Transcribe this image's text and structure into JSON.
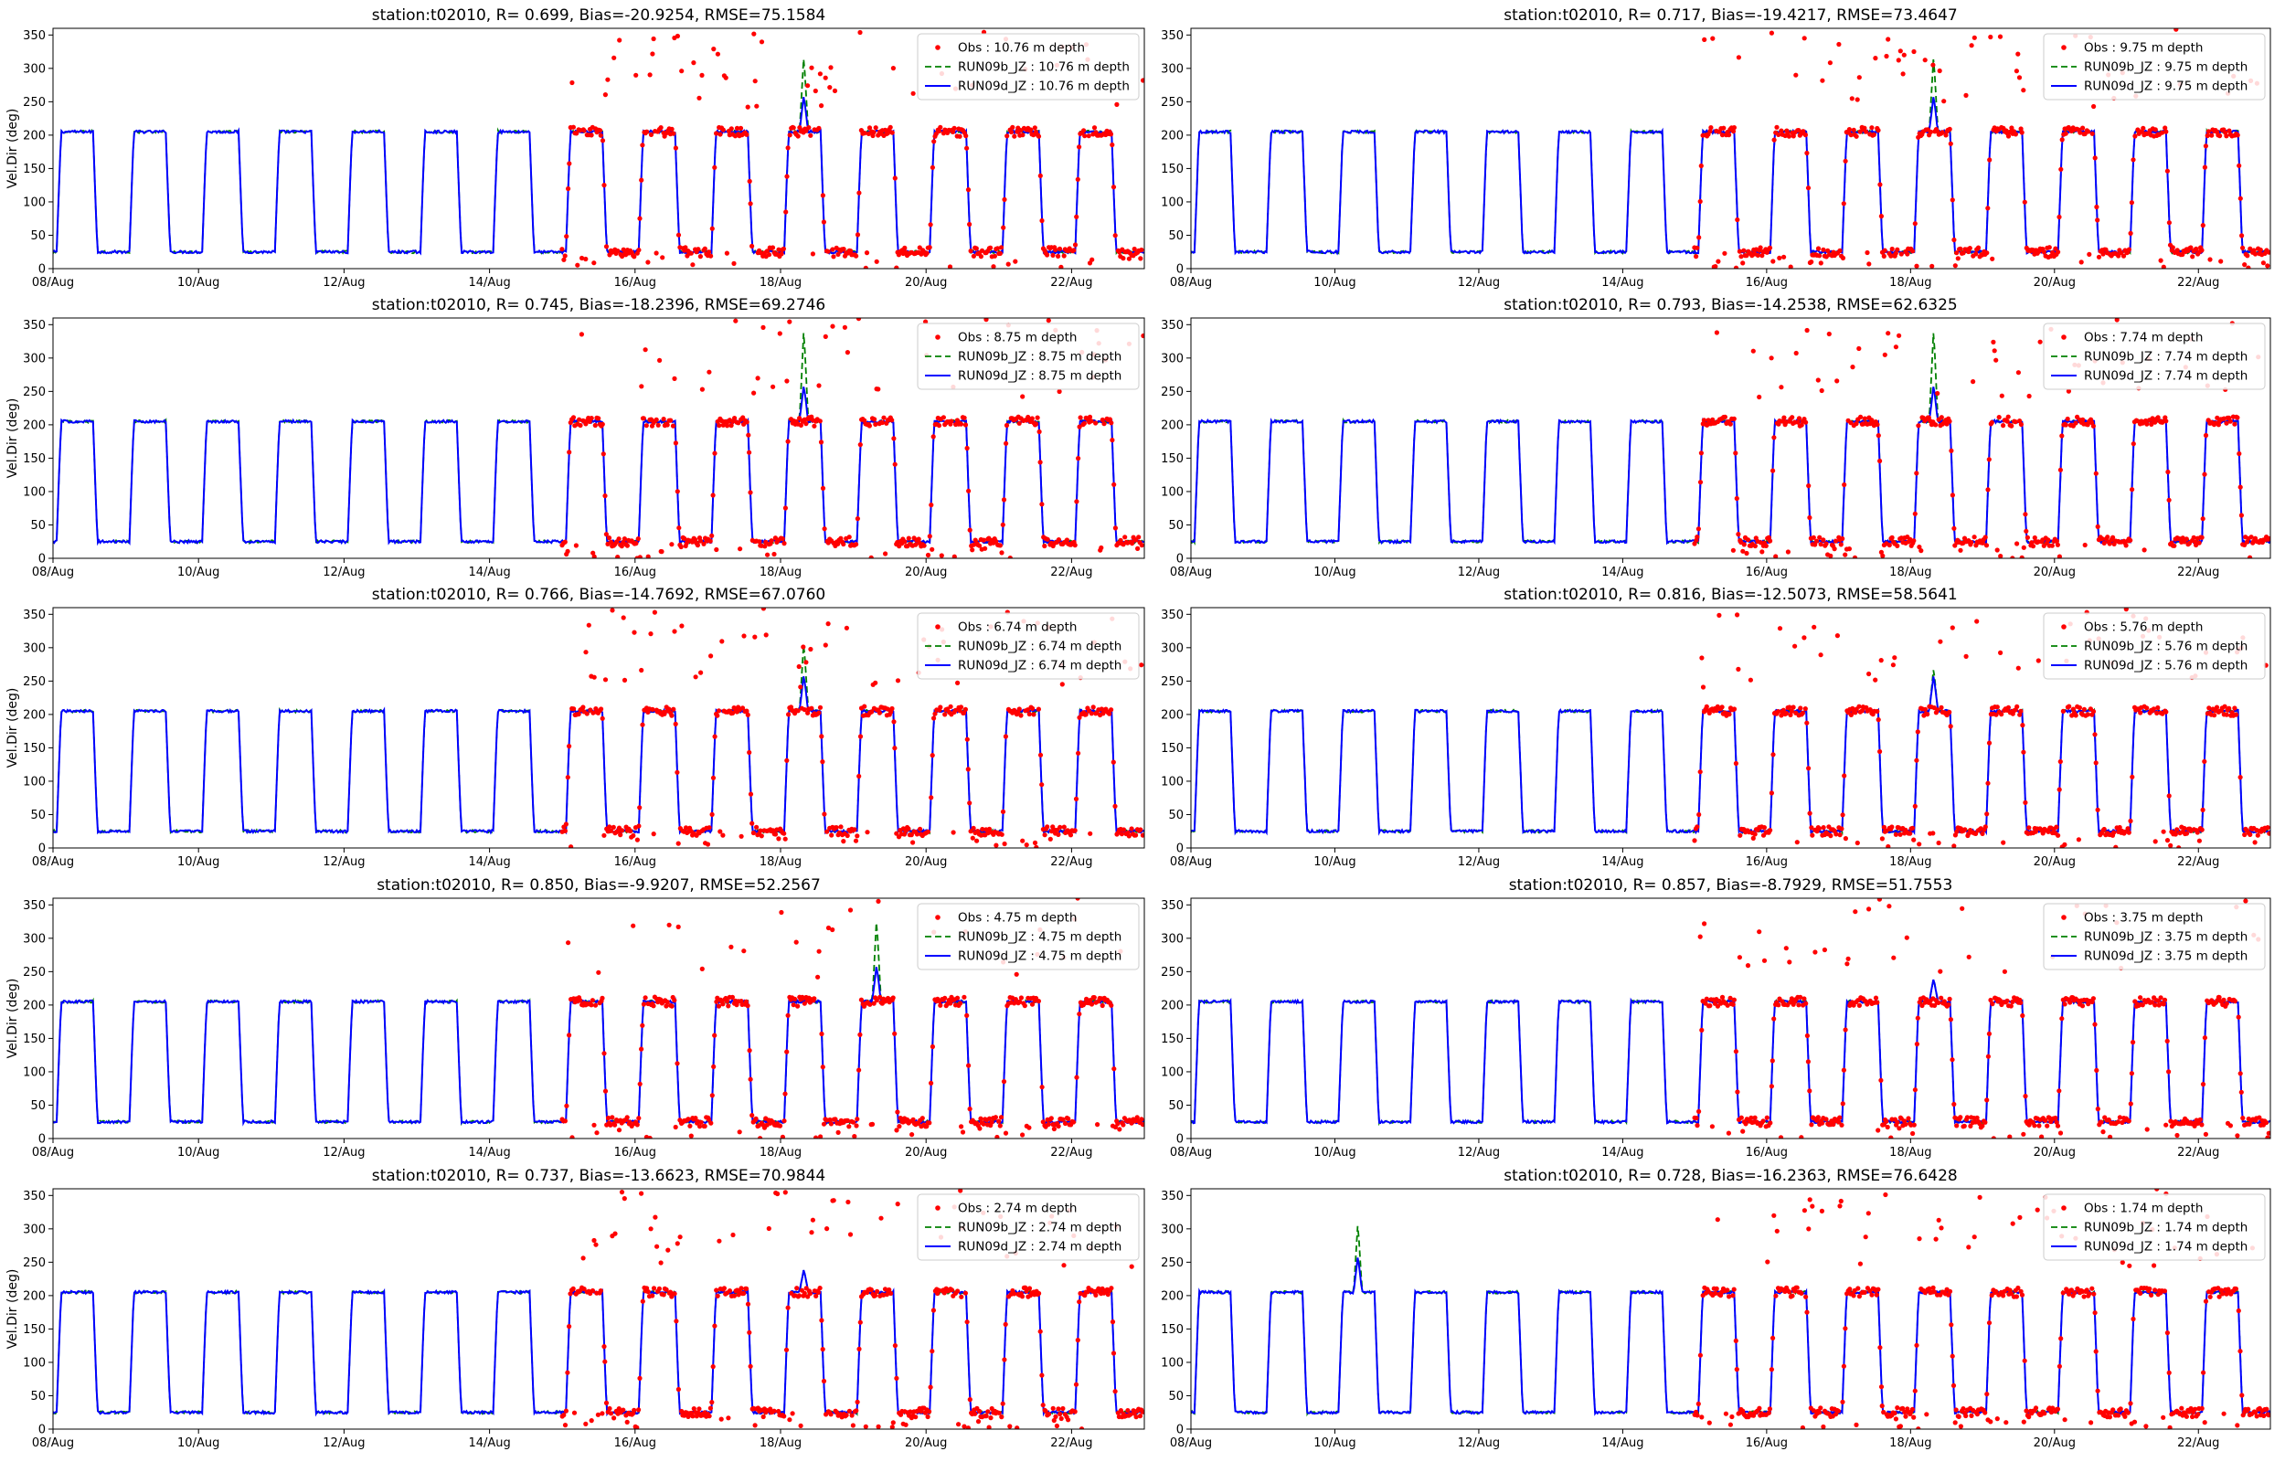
{
  "figure": {
    "colors": {
      "obs": "#ff0000",
      "run09b": "#008000",
      "run09d": "#0000ff"
    },
    "x_tick_labels": [
      "08/Aug",
      "10/Aug",
      "12/Aug",
      "14/Aug",
      "16/Aug",
      "18/Aug",
      "20/Aug",
      "22/Aug"
    ],
    "y_tick_labels": [
      "0",
      "50",
      "100",
      "150",
      "200",
      "250",
      "300",
      "350"
    ]
  },
  "chart_data": [
    {
      "type": "line",
      "title": "station:t02010, R= 0.699, Bias=-20.9254, RMSE=75.1584",
      "ylabel": "Vel.Dir (deg)",
      "xlabel": "",
      "depth_m": 10.76,
      "ylim": [
        0,
        360
      ],
      "xlim": [
        "2019-08-08",
        "2019-08-23"
      ],
      "legend_position": "top-right",
      "series": [
        {
          "name": "Obs : 10.76 m depth",
          "style": "red dots"
        },
        {
          "name": "RUN09b_JZ : 10.76 m depth",
          "style": "green dashed"
        },
        {
          "name": "RUN09d_JZ : 10.76 m depth",
          "style": "blue solid"
        }
      ],
      "approx_pattern": {
        "low_deg": 25,
        "high_deg": 205,
        "period_days": 1.0,
        "obs_start": "2019-08-15",
        "spike_peak_deg": 320,
        "spike_date": "2019-08-18"
      }
    },
    {
      "type": "line",
      "title": "station:t02010, R= 0.717, Bias=-19.4217, RMSE=73.4647",
      "ylabel": "",
      "xlabel": "",
      "depth_m": 9.75,
      "ylim": [
        0,
        360
      ],
      "xlim": [
        "2019-08-08",
        "2019-08-23"
      ],
      "legend_position": "top-right",
      "series": [
        {
          "name": "Obs : 9.75 m depth",
          "style": "red dots"
        },
        {
          "name": "RUN09b_JZ : 9.75 m depth",
          "style": "green dashed"
        },
        {
          "name": "RUN09d_JZ : 9.75 m depth",
          "style": "blue solid"
        }
      ],
      "approx_pattern": {
        "low_deg": 25,
        "high_deg": 205,
        "period_days": 1.0,
        "obs_start": "2019-08-15",
        "spike_peak_deg": 320,
        "spike_date": "2019-08-18"
      }
    },
    {
      "type": "line",
      "title": "station:t02010, R= 0.745, Bias=-18.2396, RMSE=69.2746",
      "ylabel": "Vel.Dir (deg)",
      "xlabel": "",
      "depth_m": 8.75,
      "ylim": [
        0,
        360
      ],
      "xlim": [
        "2019-08-08",
        "2019-08-23"
      ],
      "legend_position": "top-right",
      "series": [
        {
          "name": "Obs : 8.75 m depth",
          "style": "red dots"
        },
        {
          "name": "RUN09b_JZ : 8.75 m depth",
          "style": "green dashed"
        },
        {
          "name": "RUN09d_JZ : 8.75 m depth",
          "style": "blue solid"
        }
      ],
      "approx_pattern": {
        "low_deg": 25,
        "high_deg": 205,
        "period_days": 1.0,
        "obs_start": "2019-08-15",
        "spike_peak_deg": 345,
        "spike_date": "2019-08-18"
      }
    },
    {
      "type": "line",
      "title": "station:t02010, R= 0.793, Bias=-14.2538, RMSE=62.6325",
      "ylabel": "",
      "xlabel": "",
      "depth_m": 7.74,
      "ylim": [
        0,
        360
      ],
      "xlim": [
        "2019-08-08",
        "2019-08-23"
      ],
      "legend_position": "top-right",
      "series": [
        {
          "name": "Obs : 7.74 m depth",
          "style": "red dots"
        },
        {
          "name": "RUN09b_JZ : 7.74 m depth",
          "style": "green dashed"
        },
        {
          "name": "RUN09d_JZ : 7.74 m depth",
          "style": "blue solid"
        }
      ],
      "approx_pattern": {
        "low_deg": 25,
        "high_deg": 205,
        "period_days": 1.0,
        "obs_start": "2019-08-15",
        "spike_peak_deg": 345,
        "spike_date": "2019-08-18"
      }
    },
    {
      "type": "line",
      "title": "station:t02010, R= 0.766, Bias=-14.7692, RMSE=67.0760",
      "ylabel": "Vel.Dir (deg)",
      "xlabel": "",
      "depth_m": 6.74,
      "ylim": [
        0,
        360
      ],
      "xlim": [
        "2019-08-08",
        "2019-08-23"
      ],
      "legend_position": "top-right",
      "series": [
        {
          "name": "Obs : 6.74 m depth",
          "style": "red dots"
        },
        {
          "name": "RUN09b_JZ : 6.74 m depth",
          "style": "green dashed"
        },
        {
          "name": "RUN09d_JZ : 6.74 m depth",
          "style": "blue solid"
        }
      ],
      "approx_pattern": {
        "low_deg": 25,
        "high_deg": 205,
        "period_days": 1.0,
        "obs_start": "2019-08-15",
        "spike_peak_deg": 310,
        "spike_date": "2019-08-18"
      }
    },
    {
      "type": "line",
      "title": "station:t02010, R= 0.816, Bias=-12.5073, RMSE=58.5641",
      "ylabel": "",
      "xlabel": "",
      "depth_m": 5.76,
      "ylim": [
        0,
        360
      ],
      "xlim": [
        "2019-08-08",
        "2019-08-23"
      ],
      "legend_position": "top-right",
      "series": [
        {
          "name": "Obs : 5.76 m depth",
          "style": "red dots"
        },
        {
          "name": "RUN09b_JZ : 5.76 m depth",
          "style": "green dashed"
        },
        {
          "name": "RUN09d_JZ : 5.76 m depth",
          "style": "blue solid"
        }
      ],
      "approx_pattern": {
        "low_deg": 25,
        "high_deg": 205,
        "period_days": 1.0,
        "obs_start": "2019-08-15",
        "spike_peak_deg": 270,
        "spike_date": "2019-08-18"
      }
    },
    {
      "type": "line",
      "title": "station:t02010, R= 0.850, Bias=-9.9207, RMSE=52.2567",
      "ylabel": "Vel.Dir (deg)",
      "xlabel": "",
      "depth_m": 4.75,
      "ylim": [
        0,
        360
      ],
      "xlim": [
        "2019-08-08",
        "2019-08-23"
      ],
      "legend_position": "top-right",
      "series": [
        {
          "name": "Obs : 4.75 m depth",
          "style": "red dots"
        },
        {
          "name": "RUN09b_JZ : 4.75 m depth",
          "style": "green dashed"
        },
        {
          "name": "RUN09d_JZ : 4.75 m depth",
          "style": "blue solid"
        }
      ],
      "approx_pattern": {
        "low_deg": 25,
        "high_deg": 205,
        "period_days": 1.0,
        "obs_start": "2019-08-15",
        "spike_peak_deg": 330,
        "spike_date": "2019-08-19"
      }
    },
    {
      "type": "line",
      "title": "station:t02010, R= 0.857, Bias=-8.7929, RMSE=51.7553",
      "ylabel": "",
      "xlabel": "",
      "depth_m": 3.75,
      "ylim": [
        0,
        360
      ],
      "xlim": [
        "2019-08-08",
        "2019-08-23"
      ],
      "legend_position": "top-right",
      "series": [
        {
          "name": "Obs : 3.75 m depth",
          "style": "red dots"
        },
        {
          "name": "RUN09b_JZ : 3.75 m depth",
          "style": "green dashed"
        },
        {
          "name": "RUN09d_JZ : 3.75 m depth",
          "style": "blue solid"
        }
      ],
      "approx_pattern": {
        "low_deg": 25,
        "high_deg": 205,
        "period_days": 1.0,
        "obs_start": "2019-08-15",
        "spike_peak_deg": 240,
        "spike_date": "2019-08-18"
      }
    },
    {
      "type": "line",
      "title": "station:t02010, R= 0.737, Bias=-13.6623, RMSE=70.9844",
      "ylabel": "Vel.Dir (deg)",
      "xlabel": "",
      "depth_m": 2.74,
      "ylim": [
        0,
        360
      ],
      "xlim": [
        "2019-08-08",
        "2019-08-23"
      ],
      "legend_position": "top-right",
      "series": [
        {
          "name": "Obs : 2.74 m depth",
          "style": "red dots"
        },
        {
          "name": "RUN09b_JZ : 2.74 m depth",
          "style": "green dashed"
        },
        {
          "name": "RUN09d_JZ : 2.74 m depth",
          "style": "blue solid"
        }
      ],
      "approx_pattern": {
        "low_deg": 25,
        "high_deg": 205,
        "period_days": 1.0,
        "obs_start": "2019-08-15",
        "spike_peak_deg": 240,
        "spike_date": "2019-08-18"
      }
    },
    {
      "type": "line",
      "title": "station:t02010, R= 0.728, Bias=-16.2363, RMSE=76.6428",
      "ylabel": "",
      "xlabel": "",
      "depth_m": 1.74,
      "ylim": [
        0,
        360
      ],
      "xlim": [
        "2019-08-08",
        "2019-08-23"
      ],
      "legend_position": "top-right",
      "series": [
        {
          "name": "Obs : 1.74 m depth",
          "style": "red dots"
        },
        {
          "name": "RUN09b_JZ : 1.74 m depth",
          "style": "green dashed"
        },
        {
          "name": "RUN09d_JZ : 1.74 m depth",
          "style": "blue solid"
        }
      ],
      "approx_pattern": {
        "low_deg": 25,
        "high_deg": 205,
        "period_days": 1.0,
        "obs_start": "2019-08-15",
        "spike_peak_deg": 310,
        "spike_date": "2019-08-10"
      }
    }
  ]
}
